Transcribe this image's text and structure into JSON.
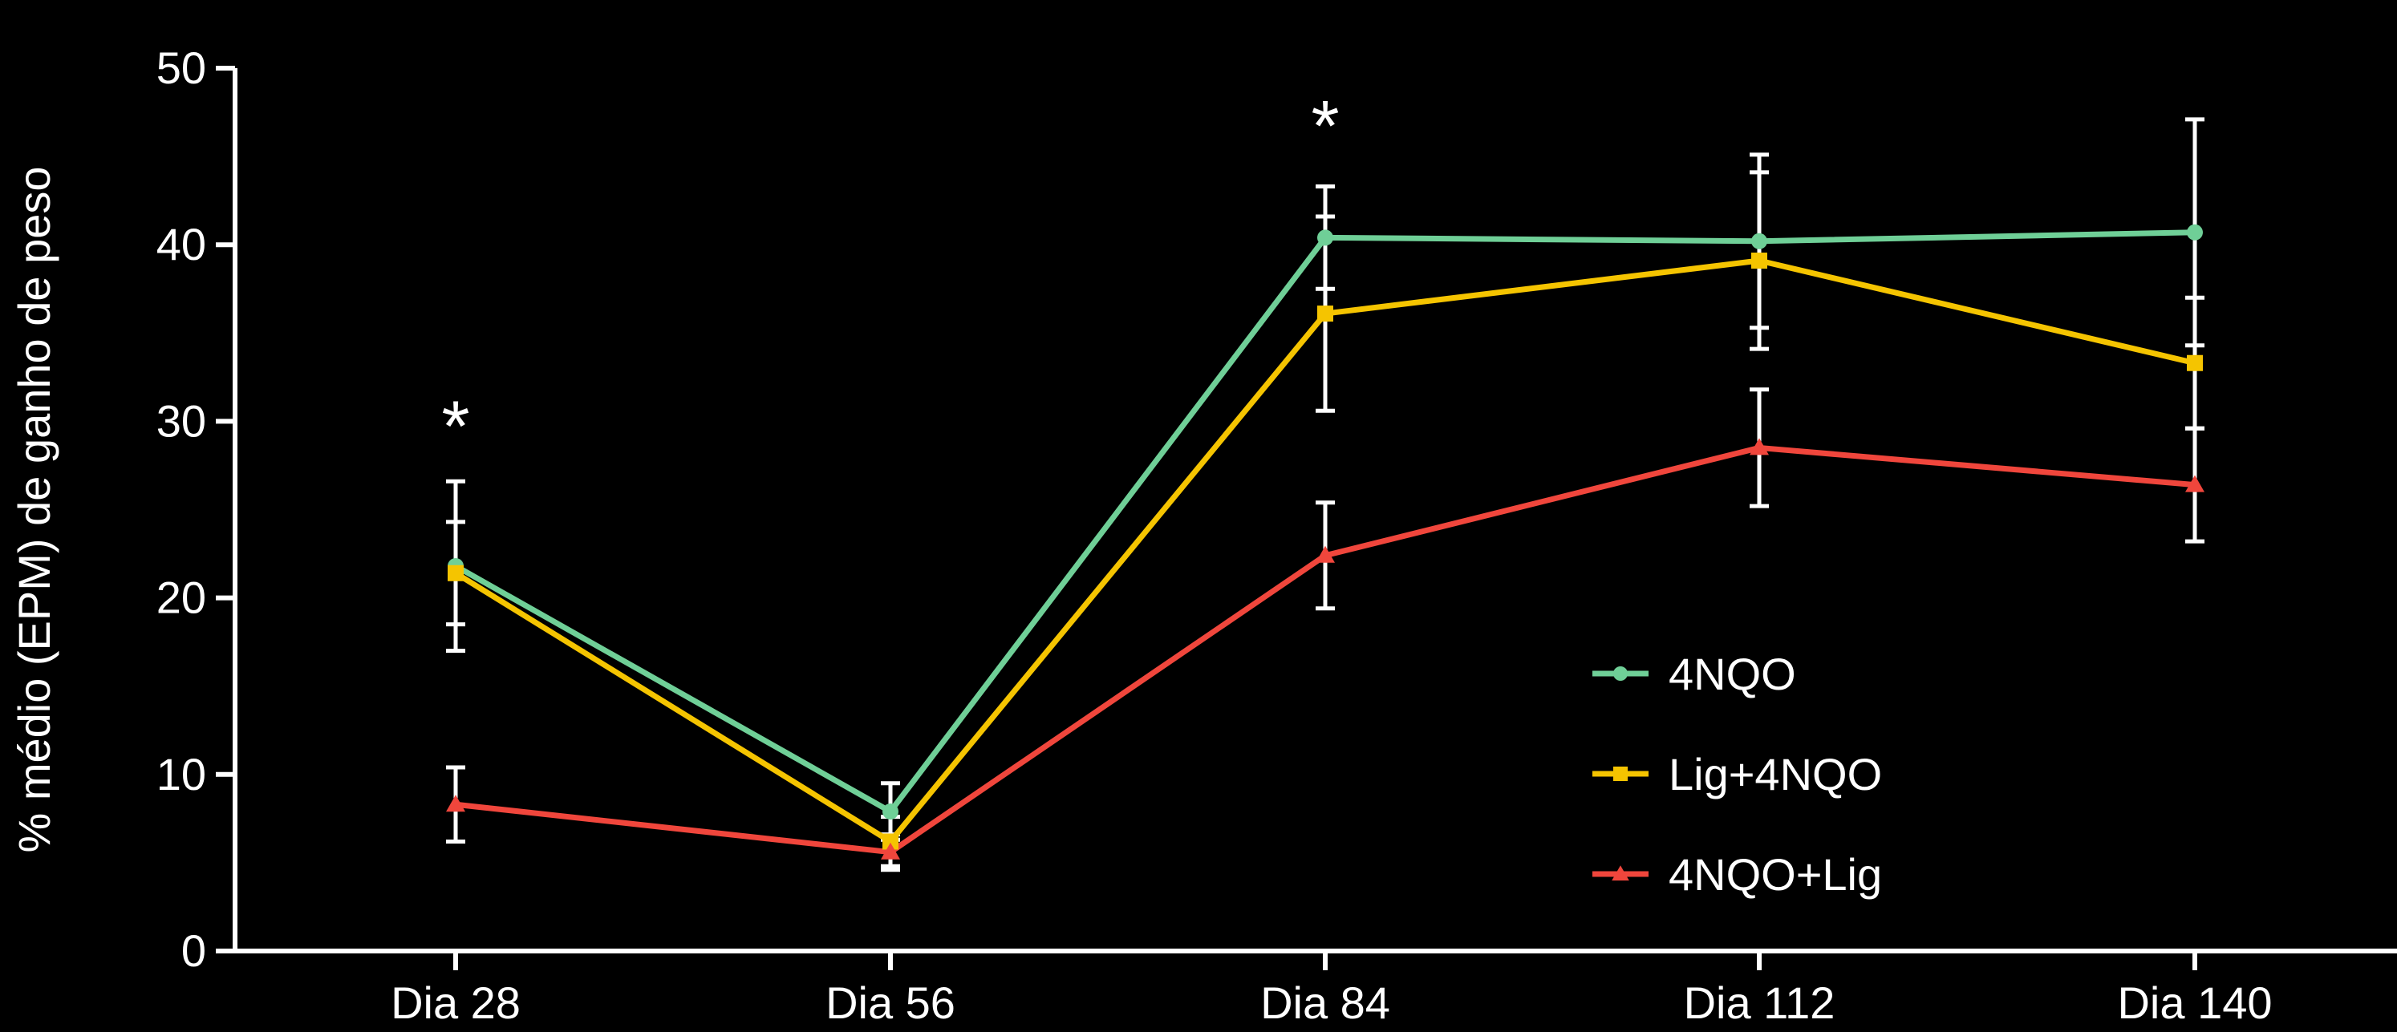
{
  "chart_data": {
    "type": "line",
    "title": "",
    "xlabel": "",
    "ylabel": "% médio (EPM) de ganho de peso",
    "categories": [
      "Dia 28",
      "Dia 56",
      "Dia 84",
      "Dia 112",
      "Dia 140"
    ],
    "yticks": [
      "0",
      "10",
      "20",
      "30",
      "40",
      "50"
    ],
    "ylim": [
      0,
      50
    ],
    "grid": false,
    "legend_position": "bottom-right",
    "series": [
      {
        "name": "4NQO",
        "color": "#6fcf97",
        "marker": "circle",
        "values": [
          21.8,
          7.9,
          40.4,
          40.2,
          40.7
        ],
        "errors": [
          4.8,
          1.6,
          2.9,
          4.9,
          6.4
        ]
      },
      {
        "name": "Lig+4NQO",
        "color": "#f5c400",
        "marker": "square",
        "values": [
          21.4,
          6.2,
          36.1,
          39.1,
          33.3
        ],
        "errors": [
          2.9,
          1.4,
          5.5,
          5.0,
          3.7
        ]
      },
      {
        "name": "4NQO+Lig",
        "color": "#f0463c",
        "marker": "triangle",
        "values": [
          8.3,
          5.6,
          22.4,
          28.5,
          26.4
        ],
        "errors": [
          2.1,
          1.0,
          3.0,
          3.3,
          3.2
        ]
      }
    ],
    "annotations": [
      {
        "category": "Dia 28",
        "y": 30.5,
        "text": "*"
      },
      {
        "category": "Dia 84",
        "y": 47.5,
        "text": "*"
      }
    ]
  }
}
